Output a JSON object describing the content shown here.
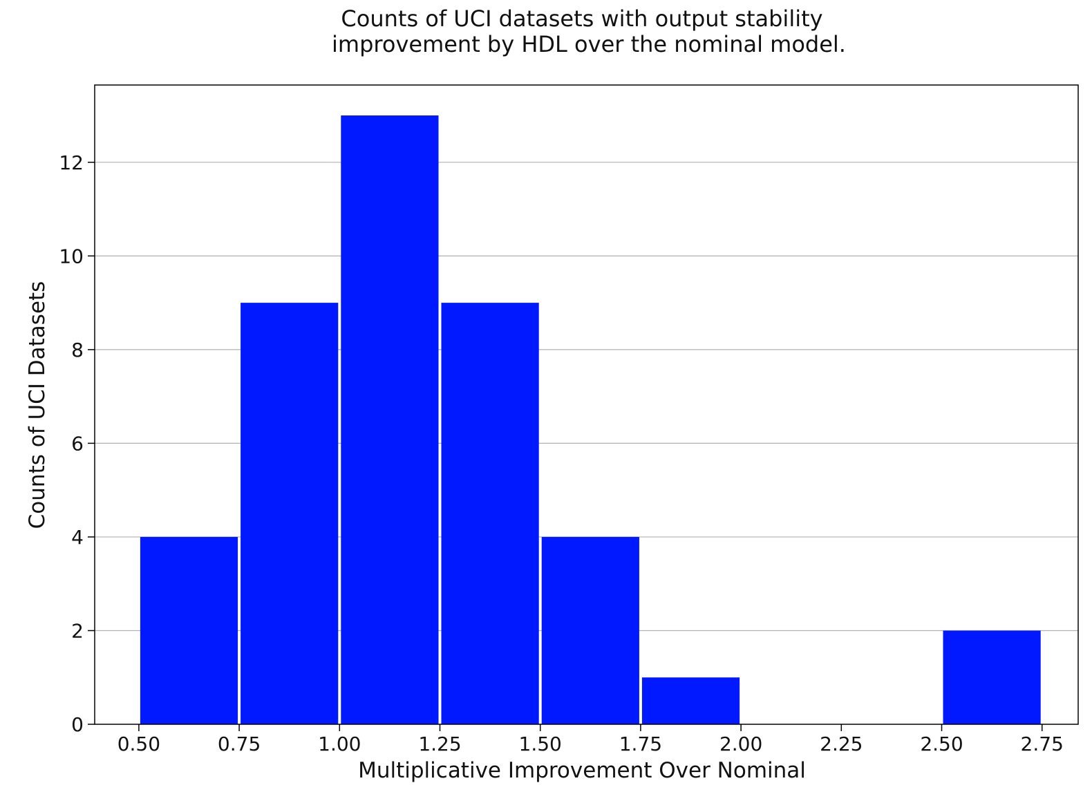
{
  "chart_data": {
    "type": "bar",
    "title_lines": [
      "Counts of UCI datasets with output stability",
      "improvement by HDL over the nominal model."
    ],
    "xlabel": "Multiplicative Improvement Over Nominal",
    "ylabel": "Counts of UCI Datasets",
    "bins": [
      {
        "start": 0.5,
        "end": 0.75,
        "count": 4
      },
      {
        "start": 0.75,
        "end": 1.0,
        "count": 9
      },
      {
        "start": 1.0,
        "end": 1.25,
        "count": 13
      },
      {
        "start": 1.25,
        "end": 1.5,
        "count": 9
      },
      {
        "start": 1.5,
        "end": 1.75,
        "count": 4
      },
      {
        "start": 1.75,
        "end": 2.0,
        "count": 1
      },
      {
        "start": 2.0,
        "end": 2.25,
        "count": 0
      },
      {
        "start": 2.25,
        "end": 2.5,
        "count": 0
      },
      {
        "start": 2.5,
        "end": 2.75,
        "count": 2
      }
    ],
    "xticks": [
      "0.50",
      "0.75",
      "1.00",
      "1.25",
      "1.50",
      "1.75",
      "2.00",
      "2.25",
      "2.50",
      "2.75"
    ],
    "yticks": [
      "0",
      "2",
      "4",
      "6",
      "8",
      "10",
      "12"
    ],
    "xlim": [
      0.39,
      2.84
    ],
    "ylim": [
      0,
      13.65
    ],
    "grid": "horizontal",
    "bar_color": "#0019ff",
    "grid_color": "#b0b0b0",
    "frame_color": "#000000"
  }
}
